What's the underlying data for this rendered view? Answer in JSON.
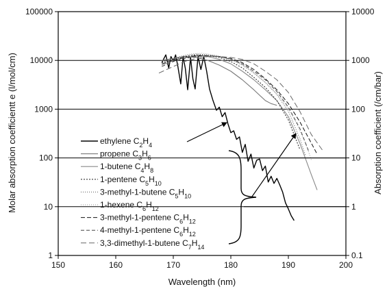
{
  "chart_data": {
    "type": "line",
    "xlabel": "Wavelength (nm)",
    "ylabel": "Molar absorption coefficientt e (l/mol/cm)",
    "ylabel_right": "Absorption coefficient (/cm/bar)",
    "xlim": [
      150,
      200
    ],
    "ylim": [
      1,
      100000
    ],
    "yscale": "log",
    "ylim_right": [
      0.1,
      10000
    ],
    "x_ticks": [
      "150",
      "160",
      "170",
      "180",
      "190",
      "200"
    ],
    "y_ticks": [
      "1",
      "10",
      "100",
      "1000",
      "10000",
      "100000"
    ],
    "y_ticks_right": [
      "0.1",
      "1",
      "10",
      "100",
      "1000",
      "10000"
    ],
    "grid": "horizontal",
    "legend_position": "bottom-left (inside plot)",
    "series": [
      {
        "name": "ethylene C2H4",
        "label_parts": [
          "ethylene C",
          "2",
          "H",
          "4"
        ],
        "color": "#000000",
        "width": 1.4,
        "dash": "",
        "x": [
          168.0,
          168.7,
          169.2,
          169.6,
          170.0,
          170.4,
          170.8,
          171.3,
          171.7,
          172.1,
          172.5,
          173.0,
          173.4,
          173.8,
          174.3,
          174.8,
          175.3,
          175.8,
          176.3,
          176.9,
          177.5,
          178.0,
          178.5,
          179.0,
          179.5,
          180.0,
          180.5,
          181.0,
          181.5,
          182.0,
          182.5,
          183.0,
          183.5,
          184.0,
          184.5,
          185.0,
          185.5,
          186.0,
          186.5,
          187.0,
          187.5,
          188.0,
          188.5,
          189.0,
          189.5,
          190.0,
          190.5,
          191.0
        ],
        "y": [
          9000,
          13000,
          7000,
          12000,
          9500,
          13000,
          7500,
          3300,
          12000,
          6800,
          2500,
          11500,
          4200,
          2600,
          12000,
          6500,
          12000,
          6000,
          2600,
          1500,
          950,
          1100,
          700,
          850,
          500,
          330,
          360,
          240,
          270,
          130,
          190,
          85,
          120,
          62,
          90,
          95,
          55,
          68,
          32,
          42,
          30,
          38,
          28,
          20,
          12,
          9,
          6.5,
          5.2
        ]
      },
      {
        "name": "propene C3H6",
        "label_parts": [
          "propene C",
          "3",
          "H",
          "6"
        ],
        "color": "#777777",
        "width": 1.1,
        "dash": "",
        "x": [
          168,
          170,
          172,
          174,
          176,
          178,
          180,
          182,
          184,
          186,
          187,
          187.5,
          188
        ],
        "y": [
          10000,
          11000,
          12000,
          11500,
          10000,
          8000,
          6000,
          4000,
          2500,
          1500,
          1300,
          1250,
          1200
        ]
      },
      {
        "name": "1-butene C4H8",
        "label_parts": [
          "1-butene C",
          "4",
          "H",
          "8"
        ],
        "color": "#888888",
        "width": 1.1,
        "dash": "",
        "x": [
          168,
          170,
          172,
          174,
          176,
          178,
          180,
          182,
          184,
          186,
          188,
          190,
          192,
          194,
          195
        ],
        "y": [
          8000,
          10000,
          11500,
          12500,
          12000,
          10500,
          8500,
          6000,
          4000,
          2500,
          1500,
          700,
          200,
          45,
          22
        ]
      },
      {
        "name": "1-pentene C5H10",
        "label_parts": [
          "1-pentene C",
          "5",
          "H",
          "10"
        ],
        "color": "#333333",
        "width": 1.1,
        "dash": "2,2",
        "x": [
          168,
          170,
          172,
          174,
          176,
          178,
          180,
          182,
          184,
          186,
          188,
          190,
          192
        ],
        "y": [
          9000,
          10500,
          12000,
          13000,
          12500,
          11500,
          9500,
          7000,
          4500,
          2800,
          1500,
          600,
          150
        ]
      },
      {
        "name": "3-methyl-1-butene C5H10",
        "label_parts": [
          "3-methyl-1-butene C",
          "5",
          "H",
          "10"
        ],
        "color": "#555555",
        "width": 1.0,
        "dash": "1,2",
        "x": [
          168,
          170,
          172,
          174,
          176,
          178,
          180,
          182,
          184,
          186,
          188,
          190,
          192,
          193
        ],
        "y": [
          9500,
          11000,
          12500,
          13500,
          13000,
          12000,
          10500,
          8000,
          5500,
          3500,
          2000,
          900,
          250,
          110
        ]
      },
      {
        "name": "1-hexene C6H12",
        "label_parts": [
          "1-hexene C",
          "6",
          "H",
          "12"
        ],
        "color": "#999999",
        "width": 1.0,
        "dash": "1,2",
        "x": [
          169,
          171,
          173,
          175,
          177,
          179,
          181,
          183,
          185,
          187,
          189,
          191,
          193,
          194
        ],
        "y": [
          10000,
          12000,
          13500,
          14000,
          13000,
          11500,
          9500,
          7000,
          4500,
          2800,
          1500,
          650,
          200,
          90
        ]
      },
      {
        "name": "3-methyl-1-pentene C6H12",
        "label_parts": [
          "3-methyl-1-pentene C",
          "6",
          "H",
          "12"
        ],
        "color": "#111111",
        "width": 1.0,
        "dash": "6,3",
        "x": [
          168,
          170,
          172,
          174,
          176,
          178,
          180,
          182,
          184,
          186,
          188,
          190,
          192,
          194,
          195
        ],
        "y": [
          8500,
          10000,
          11500,
          12500,
          12500,
          12000,
          11000,
          9000,
          6500,
          4200,
          2500,
          1300,
          550,
          200,
          120
        ]
      },
      {
        "name": "4-methyl-1-pentene C6H12",
        "label_parts": [
          "4-methyl-1-pentene C",
          "6",
          "H",
          "12"
        ],
        "color": "#444444",
        "width": 1.0,
        "dash": "5,3",
        "x": [
          168,
          170,
          172,
          174,
          176,
          178,
          180,
          182,
          184,
          186,
          188,
          190,
          192,
          193.5
        ],
        "y": [
          7500,
          9500,
          11000,
          12000,
          12500,
          12000,
          10500,
          8500,
          6000,
          4000,
          2300,
          1100,
          400,
          140
        ]
      },
      {
        "name": "3,3-dimethyl-1-butene C7H14",
        "label_parts": [
          "3,3-dimethyl-1-butene C",
          "7",
          "H",
          "14"
        ],
        "color": "#666666",
        "width": 1.0,
        "dash": "8,4",
        "x": [
          167.5,
          170,
          172,
          174,
          176,
          178,
          180,
          182,
          184,
          186,
          188,
          190,
          192,
          194,
          196
        ],
        "y": [
          5500,
          7500,
          9500,
          11000,
          12000,
          12000,
          11500,
          10500,
          8500,
          6000,
          4000,
          2200,
          900,
          300,
          140
        ]
      }
    ]
  }
}
